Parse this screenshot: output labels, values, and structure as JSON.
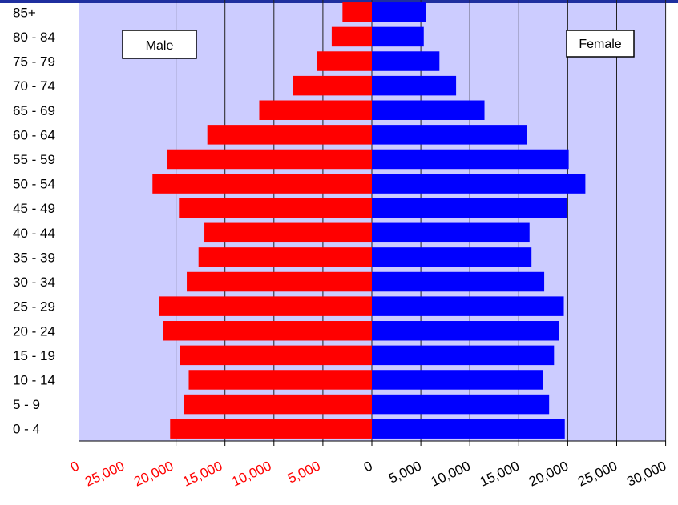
{
  "chart_data": {
    "type": "bar",
    "orientation": "horizontal",
    "layout": "population-pyramid",
    "categories": [
      "0 - 4",
      "5 - 9",
      "10 - 14",
      "15 - 19",
      "20 - 24",
      "25 - 29",
      "30 - 34",
      "35 - 39",
      "40 - 44",
      "45 - 49",
      "50 - 54",
      "55 - 59",
      "60 - 64",
      "65 - 69",
      "70 - 74",
      "75 - 79",
      "80 - 84",
      "85+"
    ],
    "series": [
      {
        "name": "Male",
        "color": "#ff0000",
        "values": [
          20600,
          19200,
          18700,
          19600,
          21300,
          21700,
          18900,
          17700,
          17100,
          19700,
          22400,
          20900,
          16800,
          11500,
          8100,
          5600,
          4100,
          3000
        ]
      },
      {
        "name": "Female",
        "color": "#0000ff",
        "values": [
          19700,
          18100,
          17500,
          18600,
          19100,
          19600,
          17600,
          16300,
          16100,
          19900,
          21800,
          20100,
          15800,
          11500,
          8600,
          6900,
          5300,
          5500
        ]
      }
    ],
    "x_ticks_left": [
      "25,000",
      "20,000",
      "15,000",
      "10,000",
      "5,000"
    ],
    "x_tick_left_partial": "0",
    "x_ticks_right": [
      "0",
      "5,000",
      "10,000",
      "15,000",
      "20,000",
      "25,000",
      "30,000"
    ],
    "xlim": [
      -30000,
      30000
    ],
    "grid": "vertical",
    "plot_background": "#ccccff",
    "legend_labels": {
      "left": "Male",
      "right": "Female"
    }
  }
}
